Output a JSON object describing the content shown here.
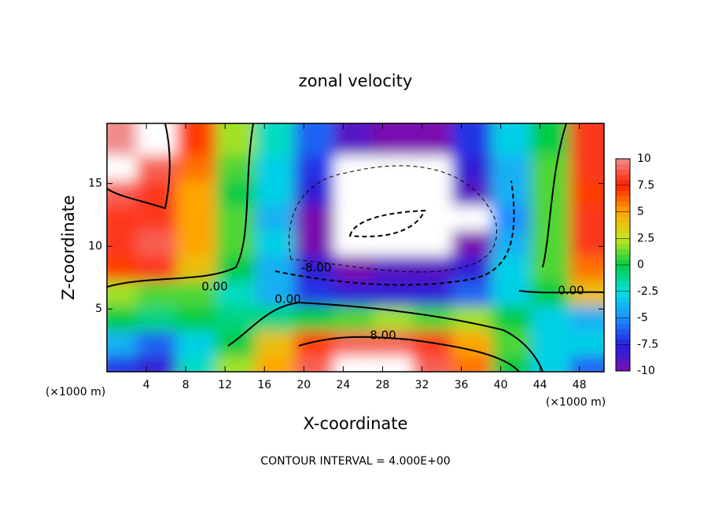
{
  "chart_data": {
    "type": "contour",
    "title": "zonal velocity",
    "x_label": "X-coordinate",
    "y_label": "Z-coordinate",
    "x_unit": "(×1000 m)",
    "footer": "CONTOUR INTERVAL = 4.000E+00",
    "contour_labels": [
      "0.00",
      "0.00",
      "0.00",
      "-8.00",
      "8.00"
    ],
    "xlim": [
      0,
      50.5
    ],
    "ylim": [
      0,
      19.8
    ],
    "xticks": [
      4,
      8,
      12,
      16,
      20,
      24,
      28,
      32,
      36,
      40,
      44,
      48
    ],
    "yticks": [
      5,
      10,
      15
    ],
    "x": [
      2,
      6,
      10,
      14,
      18,
      22,
      26,
      30,
      34,
      38,
      42,
      46,
      50
    ],
    "y": [
      1,
      3,
      5,
      7,
      9,
      11,
      13,
      15,
      17,
      19
    ],
    "z": [
      [
        -7,
        -8,
        -2,
        2,
        5,
        9,
        11,
        11,
        9,
        6,
        0,
        -3,
        -6
      ],
      [
        -4,
        -6,
        -3,
        0,
        4,
        7,
        9,
        9,
        8,
        5,
        1,
        -3,
        -3
      ],
      [
        0,
        -1,
        0,
        -1,
        -1,
        0,
        1,
        2,
        1,
        2,
        0,
        -3,
        -4
      ],
      [
        2,
        1,
        1,
        -2,
        -4,
        -7,
        -8,
        -8,
        -8,
        -6,
        -3,
        0,
        4
      ],
      [
        7,
        8,
        4,
        0,
        -4,
        -8,
        -10,
        -9,
        -9,
        -8,
        -3,
        1,
        6
      ],
      [
        8,
        9,
        5,
        1,
        -3,
        -10,
        -12,
        -13,
        -12,
        -10,
        -4,
        1,
        8
      ],
      [
        8,
        8,
        5,
        1,
        -4,
        -10,
        -12,
        -13,
        -12,
        -11,
        -5,
        1,
        8
      ],
      [
        9,
        8,
        5,
        0,
        -3,
        -8,
        -11,
        -12,
        -11,
        -9,
        -4,
        1,
        7
      ],
      [
        11,
        9,
        6,
        1,
        -3,
        -7,
        -11,
        -11,
        -11,
        -8,
        -4,
        1,
        8
      ],
      [
        10,
        11,
        7,
        2,
        -2,
        -6,
        -9,
        -10,
        -10,
        -7,
        -3,
        0,
        8
      ]
    ],
    "colorbar": {
      "lim": [
        -10,
        10
      ],
      "ticks": [
        -10,
        -7.5,
        -5,
        -2.5,
        0,
        2.5,
        5,
        7.5,
        10
      ],
      "colors": [
        "#7a0fb0",
        "#2020e0",
        "#1e90ff",
        "#00e0e0",
        "#00cc44",
        "#c8e61e",
        "#ffa500",
        "#ff2200",
        "#f08a8a"
      ],
      "out_of_range_color": "#ffffff"
    }
  }
}
